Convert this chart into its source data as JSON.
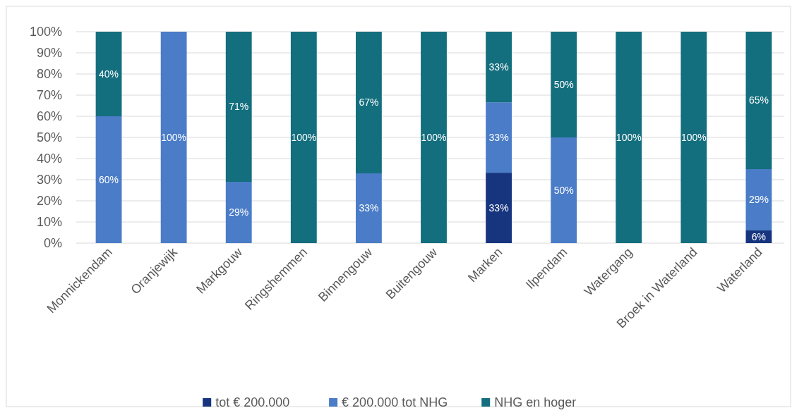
{
  "chart_data": {
    "type": "bar",
    "stacked": true,
    "categories": [
      "Monnickendam",
      "Oranjewijk",
      "Markgouw",
      "Ringshemmen",
      "Binnengouw",
      "Buitengouw",
      "Marken",
      "Ilpendam",
      "Watergang",
      "Broek in Waterland",
      "Waterland"
    ],
    "series": [
      {
        "name": "tot € 200.000",
        "color": "#17357f",
        "values": [
          0,
          0,
          0,
          0,
          0,
          0,
          33.3,
          0,
          0,
          0,
          6
        ],
        "value_labels": [
          null,
          null,
          null,
          null,
          null,
          null,
          "33%",
          null,
          null,
          null,
          "6%"
        ]
      },
      {
        "name": "€ 200.000 tot NHG",
        "color": "#4a7cc7",
        "values": [
          60,
          100,
          29,
          0,
          33,
          0,
          33.3,
          50,
          0,
          0,
          29
        ],
        "value_labels": [
          "60%",
          "100%",
          "29%",
          null,
          "33%",
          null,
          "33%",
          "50%",
          null,
          null,
          "29%"
        ]
      },
      {
        "name": "NHG en hoger",
        "color": "#136e7e",
        "values": [
          40,
          0,
          71,
          100,
          67,
          100,
          33.4,
          50,
          100,
          100,
          65
        ],
        "value_labels": [
          "40%",
          null,
          "71%",
          "100%",
          "67%",
          "100%",
          "33%",
          "50%",
          "100%",
          "100%",
          "65%"
        ]
      }
    ],
    "ylim": [
      0,
      100
    ],
    "yticks": [
      {
        "value": 0,
        "label": "0%"
      },
      {
        "value": 10,
        "label": "10%"
      },
      {
        "value": 20,
        "label": "20%"
      },
      {
        "value": 30,
        "label": "30%"
      },
      {
        "value": 40,
        "label": "40%"
      },
      {
        "value": 50,
        "label": "50%"
      },
      {
        "value": 60,
        "label": "60%"
      },
      {
        "value": 70,
        "label": "70%"
      },
      {
        "value": 80,
        "label": "80%"
      },
      {
        "value": 90,
        "label": "90%"
      },
      {
        "value": 100,
        "label": "100%"
      }
    ],
    "grid": "y",
    "legend": "bottom"
  }
}
